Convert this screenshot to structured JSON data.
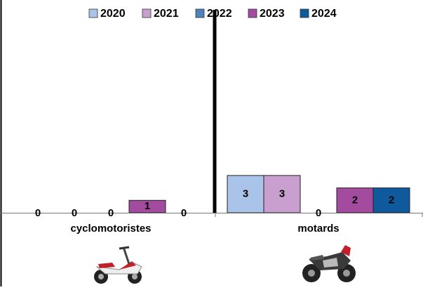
{
  "chart_data": {
    "type": "bar",
    "categories": [
      "cyclomotoristes",
      "motards"
    ],
    "series": [
      {
        "name": "2020",
        "color": "#a9c4e8",
        "values": [
          0,
          3
        ]
      },
      {
        "name": "2021",
        "color": "#c99fd0",
        "values": [
          0,
          3
        ]
      },
      {
        "name": "2022",
        "color": "#4f81bd",
        "values": [
          0,
          0
        ]
      },
      {
        "name": "2023",
        "color": "#a34b9f",
        "values": [
          1,
          2
        ]
      },
      {
        "name": "2024",
        "color": "#0f5a9c",
        "values": [
          0,
          2
        ]
      }
    ],
    "legend": "top"
  }
}
